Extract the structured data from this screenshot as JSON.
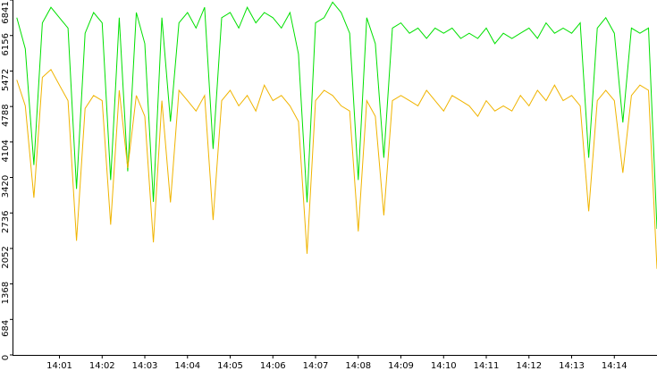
{
  "chart_data": {
    "type": "line",
    "x": [
      840.0,
      840.2,
      840.4,
      840.6,
      840.8,
      841.0,
      841.2,
      841.4,
      841.6,
      841.8,
      842.0,
      842.2,
      842.4,
      842.6,
      842.8,
      843.0,
      843.2,
      843.4,
      843.6,
      843.8,
      844.0,
      844.2,
      844.4,
      844.6,
      844.8,
      845.0,
      845.2,
      845.4,
      845.6,
      845.8,
      846.0,
      846.2,
      846.4,
      846.6,
      846.8,
      847.0,
      847.2,
      847.4,
      847.6,
      847.8,
      848.0,
      848.2,
      848.4,
      848.6,
      848.8,
      849.0,
      849.2,
      849.4,
      849.6,
      849.8,
      850.0,
      850.2,
      850.4,
      850.6,
      850.8,
      851.0,
      851.2,
      851.4,
      851.6,
      851.8,
      852.0,
      852.2,
      852.4,
      852.6,
      852.8,
      853.0,
      853.2,
      853.4,
      853.6,
      853.8,
      854.0,
      854.2,
      854.4,
      854.6,
      854.8,
      855.0
    ],
    "series": [
      {
        "color": "#00e000",
        "values": [
          6500,
          5900,
          3660,
          6400,
          6700,
          6500,
          6300,
          3200,
          6200,
          6600,
          6400,
          3370,
          6500,
          3540,
          6600,
          6000,
          2950,
          6500,
          4500,
          6400,
          6600,
          6300,
          6700,
          3970,
          6500,
          6600,
          6300,
          6700,
          6400,
          6600,
          6500,
          6300,
          6600,
          5800,
          2940,
          6400,
          6500,
          6800,
          6600,
          6200,
          3370,
          6500,
          6000,
          3800,
          6300,
          6400,
          6200,
          6300,
          6100,
          6300,
          6200,
          6300,
          6100,
          6200,
          6100,
          6300,
          6000,
          6200,
          6100,
          6200,
          6300,
          6100,
          6400,
          6200,
          6300,
          6200,
          6400,
          3800,
          6300,
          6500,
          6200,
          4480,
          6300,
          6200,
          6300,
          2430
        ]
      },
      {
        "color": "#f0b400",
        "values": [
          5300,
          4800,
          3030,
          5350,
          5500,
          5200,
          4900,
          2200,
          4750,
          5000,
          4900,
          2510,
          5100,
          3600,
          5000,
          4600,
          2170,
          4900,
          2940,
          5100,
          4900,
          4700,
          5000,
          2600,
          4900,
          5100,
          4800,
          5000,
          4700,
          5200,
          4900,
          5000,
          4800,
          4500,
          1950,
          4900,
          5100,
          5000,
          4800,
          4700,
          2380,
          4900,
          4600,
          2690,
          4900,
          5000,
          4900,
          4800,
          5100,
          4900,
          4700,
          5000,
          4900,
          4800,
          4600,
          4900,
          4700,
          4800,
          4700,
          5000,
          4800,
          5100,
          4900,
          5200,
          4900,
          5000,
          4800,
          2770,
          4900,
          5100,
          4900,
          3510,
          5000,
          5200,
          5100,
          1660
        ]
      }
    ],
    "xlim": [
      839.9,
      855.0
    ],
    "xticks": [
      {
        "value": 841,
        "label": "14:01"
      },
      {
        "value": 842,
        "label": "14:02"
      },
      {
        "value": 843,
        "label": "14:03"
      },
      {
        "value": 844,
        "label": "14:04"
      },
      {
        "value": 845,
        "label": "14:05"
      },
      {
        "value": 846,
        "label": "14:06"
      },
      {
        "value": 847,
        "label": "14:07"
      },
      {
        "value": 848,
        "label": "14:08"
      },
      {
        "value": 849,
        "label": "14:09"
      },
      {
        "value": 850,
        "label": "14:10"
      },
      {
        "value": 851,
        "label": "14:11"
      },
      {
        "value": 852,
        "label": "14:12"
      },
      {
        "value": 853,
        "label": "14:13"
      },
      {
        "value": 854,
        "label": "14:14"
      }
    ],
    "ylim": [
      0,
      6841
    ],
    "yticks": [
      0,
      684,
      1368,
      2052,
      2736,
      3420,
      4104,
      4788,
      5472,
      6156,
      6841
    ]
  }
}
